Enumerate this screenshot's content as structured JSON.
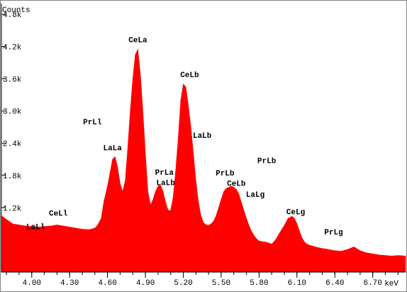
{
  "chart_data": {
    "type": "area",
    "title": "",
    "ylabel": "Counts",
    "xlabel": "keV",
    "xlim": [
      3.76,
      6.96
    ],
    "ylim": [
      0,
      5000
    ],
    "yticks": [
      1200,
      1800,
      2400,
      3000,
      3600,
      4200,
      4800
    ],
    "ytick_labels": [
      "1.2k",
      "1.8k",
      "2.4k",
      "3.0k",
      "3.6k",
      "4.2k",
      "4.8k"
    ],
    "xticks": [
      4.0,
      4.3,
      4.6,
      4.9,
      5.2,
      5.5,
      5.8,
      6.1,
      6.4,
      6.7
    ],
    "xtick_labels": [
      "4.00",
      "4.30",
      "4.60",
      "4.90",
      "5.20",
      "5.50",
      "5.80",
      "6.10",
      "6.40",
      "6.70"
    ],
    "fill_color": "#ff0000",
    "series": [
      {
        "x": [
          3.76,
          3.8,
          3.85,
          3.9,
          3.95,
          4.0,
          4.05,
          4.1,
          4.15,
          4.2,
          4.25,
          4.3,
          4.35,
          4.4,
          4.45,
          4.5,
          4.52,
          4.55,
          4.57,
          4.6,
          4.62,
          4.64,
          4.66,
          4.68,
          4.7,
          4.72,
          4.74,
          4.76,
          4.78,
          4.8,
          4.82,
          4.84,
          4.86,
          4.88,
          4.9,
          4.92,
          4.94,
          4.96,
          4.98,
          5.0,
          5.02,
          5.04,
          5.06,
          5.08,
          5.1,
          5.12,
          5.14,
          5.16,
          5.18,
          5.2,
          5.22,
          5.24,
          5.26,
          5.28,
          5.3,
          5.32,
          5.34,
          5.36,
          5.38,
          5.4,
          5.42,
          5.44,
          5.46,
          5.48,
          5.5,
          5.52,
          5.54,
          5.56,
          5.58,
          5.6,
          5.62,
          5.64,
          5.66,
          5.68,
          5.7,
          5.72,
          5.74,
          5.76,
          5.78,
          5.8,
          5.82,
          5.85,
          5.88,
          5.9,
          5.93,
          5.96,
          6.0,
          6.03,
          6.06,
          6.08,
          6.1,
          6.12,
          6.14,
          6.16,
          6.18,
          6.2,
          6.23,
          6.26,
          6.3,
          6.35,
          6.4,
          6.45,
          6.5,
          6.55,
          6.6,
          6.65,
          6.7,
          6.75,
          6.8,
          6.85,
          6.9,
          6.96
        ],
        "y": [
          1050,
          980,
          900,
          880,
          860,
          850,
          840,
          850,
          860,
          880,
          860,
          840,
          820,
          800,
          790,
          820,
          870,
          1000,
          1300,
          1600,
          1850,
          2100,
          2150,
          1950,
          1650,
          1500,
          1700,
          2300,
          3000,
          3600,
          4050,
          4150,
          3700,
          3000,
          2200,
          1500,
          1250,
          1350,
          1500,
          1600,
          1620,
          1500,
          1300,
          1150,
          1150,
          1400,
          1900,
          2500,
          3200,
          3500,
          3450,
          3100,
          2700,
          2200,
          1700,
          1300,
          1050,
          920,
          880,
          870,
          900,
          950,
          1050,
          1200,
          1350,
          1500,
          1560,
          1580,
          1600,
          1580,
          1540,
          1450,
          1300,
          1150,
          1000,
          870,
          760,
          680,
          620,
          580,
          570,
          560,
          540,
          520,
          600,
          720,
          870,
          1000,
          1040,
          1000,
          900,
          760,
          640,
          560,
          520,
          500,
          480,
          460,
          440,
          420,
          400,
          390,
          420,
          470,
          400,
          360,
          340,
          320,
          310,
          300,
          310,
          300
        ]
      }
    ],
    "annotations": [
      {
        "text": "LaLl",
        "x": 4.03,
        "y": 800
      },
      {
        "text": "CeLl",
        "x": 4.21,
        "y": 1050
      },
      {
        "text": "PrLl",
        "x": 4.48,
        "y": 2750
      },
      {
        "text": "LaLa",
        "x": 4.64,
        "y": 2270
      },
      {
        "text": "CeLa",
        "x": 4.84,
        "y": 4280
      },
      {
        "text": "PrLa",
        "x": 5.05,
        "y": 1810
      },
      {
        "text": "LaLb",
        "x": 5.06,
        "y": 1620
      },
      {
        "text": "CeLb",
        "x": 5.25,
        "y": 3630
      },
      {
        "text": "LaLb",
        "x": 5.35,
        "y": 2500
      },
      {
        "text": "PrLb",
        "x": 5.53,
        "y": 1800
      },
      {
        "text": "CeLb",
        "x": 5.62,
        "y": 1610
      },
      {
        "text": "LaLg",
        "x": 5.77,
        "y": 1400
      },
      {
        "text": "PrLb",
        "x": 5.86,
        "y": 2030
      },
      {
        "text": "CeLg",
        "x": 6.09,
        "y": 1080
      },
      {
        "text": "PrLg",
        "x": 6.39,
        "y": 700
      }
    ],
    "grid": false,
    "legend": "none"
  }
}
